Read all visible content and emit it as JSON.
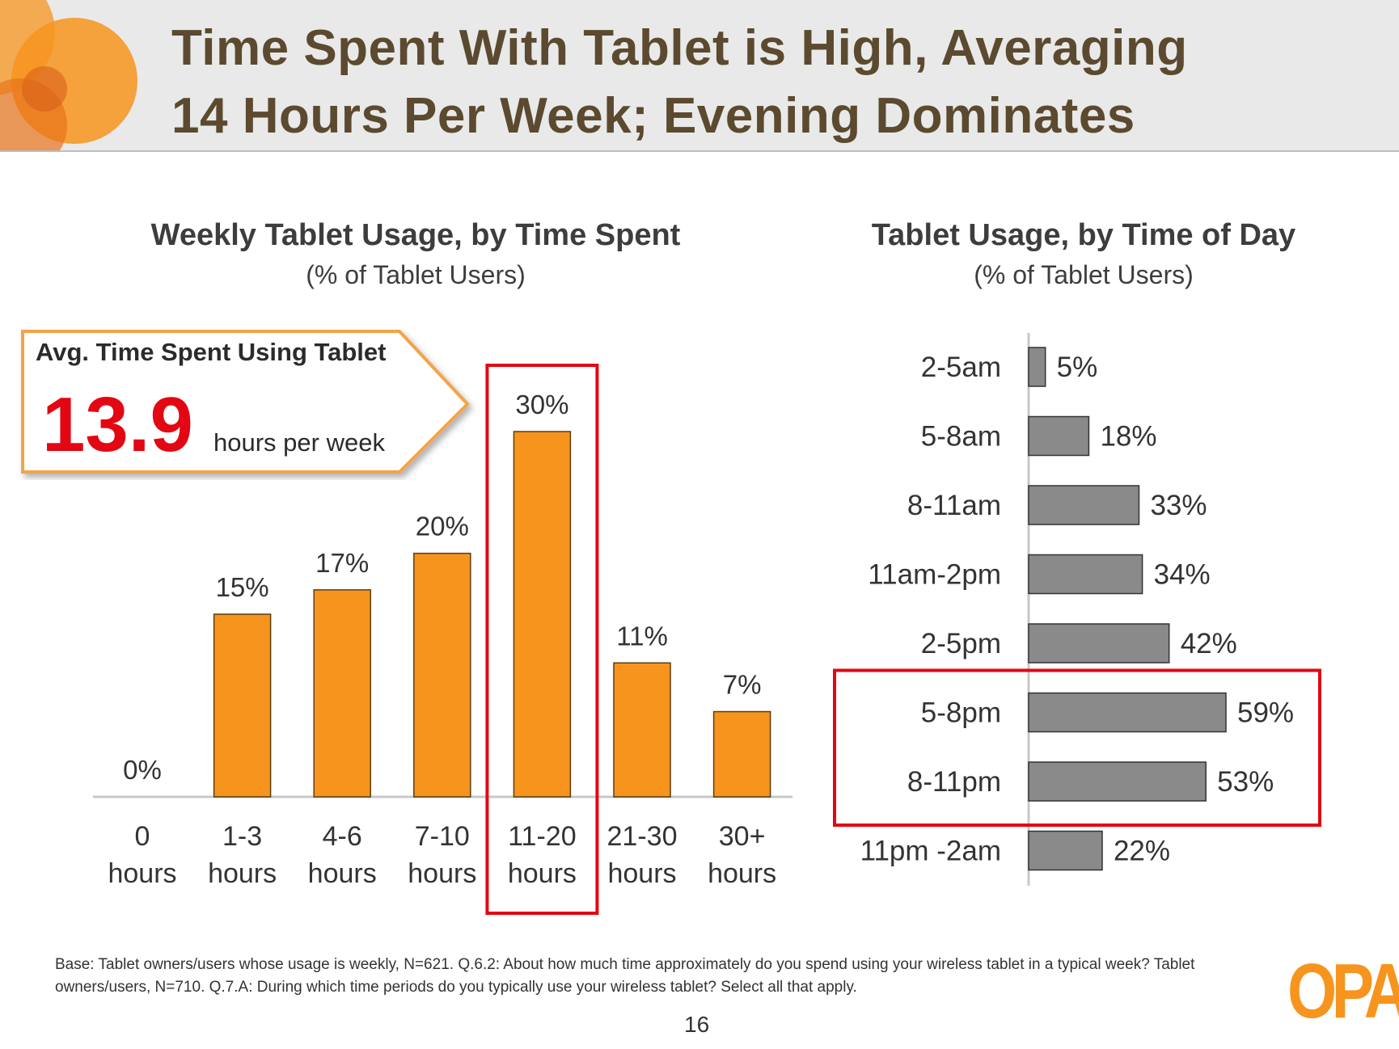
{
  "title": {
    "line1": "Time Spent With Tablet is High, Averaging",
    "line2": "14 Hours Per Week; Evening Dominates"
  },
  "callout": {
    "label": "Avg. Time Spent Using Tablet",
    "value": "13.9",
    "unit": "hours per week"
  },
  "footnote": "Base: Tablet owners/users whose usage is weekly, N=621. Q.6.2: About how much time approximately do you spend using your wireless tablet in a typical week? Tablet owners/users, N=710. Q.7.A: During which time periods do you typically use your wireless tablet? Select all that apply.",
  "page_number": "16",
  "logo_text": "OPA",
  "colors": {
    "orange": "#f7941d",
    "gray_bar": "#8a8a8a",
    "highlight": "#e30613",
    "title": "#5b4a2f"
  },
  "chart_data": [
    {
      "type": "bar",
      "title": "Weekly Tablet Usage, by Time Spent",
      "subtitle": "(% of Tablet Users)",
      "categories": [
        [
          "0",
          "hours"
        ],
        [
          "1-3",
          "hours"
        ],
        [
          "4-6",
          "hours"
        ],
        [
          "7-10",
          "hours"
        ],
        [
          "11-20",
          "hours"
        ],
        [
          "21-30",
          "hours"
        ],
        [
          "30+",
          "hours"
        ]
      ],
      "values": [
        0,
        15,
        17,
        20,
        30,
        11,
        7
      ],
      "value_labels": [
        "0%",
        "15%",
        "17%",
        "20%",
        "30%",
        "11%",
        "7%"
      ],
      "ylim": [
        0,
        30
      ],
      "highlight_index": 4,
      "grid": false
    },
    {
      "type": "bar",
      "orientation": "horizontal",
      "title": "Tablet Usage, by Time of Day",
      "subtitle": "(% of Tablet Users)",
      "categories": [
        "2-5am",
        "5-8am",
        "8-11am",
        "11am-2pm",
        "2-5pm",
        "5-8pm",
        "8-11pm",
        "11pm -2am"
      ],
      "values": [
        5,
        18,
        33,
        34,
        42,
        59,
        53,
        22
      ],
      "value_labels": [
        "5%",
        "18%",
        "33%",
        "34%",
        "42%",
        "59%",
        "53%",
        "22%"
      ],
      "xlim": [
        0,
        59
      ],
      "highlight_indices": [
        5,
        6
      ],
      "grid": false
    }
  ]
}
